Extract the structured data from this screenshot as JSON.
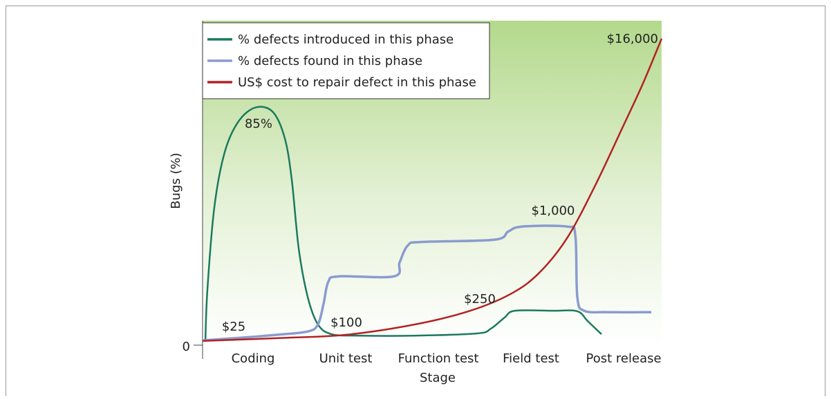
{
  "chart_data": {
    "type": "line",
    "xlabel": "Stage",
    "ylabel": "Bugs (%)",
    "xlim": [
      -0.545,
      4.41
    ],
    "ylim": [
      0,
      116
    ],
    "xticks": [
      {
        "value": 0,
        "label": "Coding"
      },
      {
        "value": 1,
        "label": "Unit test"
      },
      {
        "value": 2,
        "label": "Function test"
      },
      {
        "value": 3,
        "label": "Field test"
      },
      {
        "value": 4,
        "label": "Post release"
      }
    ],
    "yticks": [
      0
    ],
    "legend": "upper left",
    "series": [
      {
        "name": "% defects introduced in this phase",
        "color": "#1a7a5e",
        "x": [
          -0.515,
          -0.493,
          -0.418,
          -0.306,
          -0.157,
          0.03,
          0.216,
          0.343,
          0.418,
          0.493,
          0.59,
          0.701,
          0.851,
          1.149,
          1.746,
          2.418,
          2.567,
          2.716,
          2.828,
          3.239,
          3.5,
          3.612,
          3.761
        ],
        "values": [
          1.2,
          19.7,
          49.3,
          69.0,
          80.0,
          85,
          83.3,
          73.9,
          59.1,
          34.5,
          17.2,
          7.4,
          3.9,
          3.4,
          3.4,
          4.2,
          5.9,
          9.9,
          12.3,
          12.3,
          12.1,
          8.6,
          3.9
        ]
      },
      {
        "name": "% defects found in this phase",
        "color": "#8a9bd0",
        "x": [
          -0.545,
          -0.119,
          0.254,
          0.59,
          0.701,
          0.761,
          0.813,
          0.925,
          1.522,
          1.582,
          1.672,
          1.821,
          2.604,
          2.754,
          2.903,
          3.388,
          3.478,
          3.5,
          3.575,
          3.836,
          4.299
        ],
        "values": [
          1.7,
          2.7,
          3.7,
          4.9,
          7.4,
          14.8,
          22.7,
          24.6,
          24.6,
          29.6,
          35.7,
          36.9,
          37.7,
          40.6,
          42.4,
          42.4,
          39.4,
          17.2,
          12.3,
          11.8,
          11.8
        ]
      },
      {
        "name": "US$ cost to repair defect in this phase",
        "color": "#b22222",
        "x": [
          -0.545,
          0.254,
          1.0,
          1.746,
          2.343,
          2.791,
          3.09,
          3.388,
          3.687,
          3.985,
          4.209,
          4.41
        ],
        "values": [
          1.5,
          2.5,
          3.7,
          7.4,
          12.3,
          18.5,
          25.9,
          38.2,
          56.7,
          77.6,
          93.6,
          109.6
        ]
      }
    ],
    "annotations": [
      "85%",
      "$25",
      "$100",
      "$250",
      "$1,000",
      "$16,000"
    ]
  }
}
